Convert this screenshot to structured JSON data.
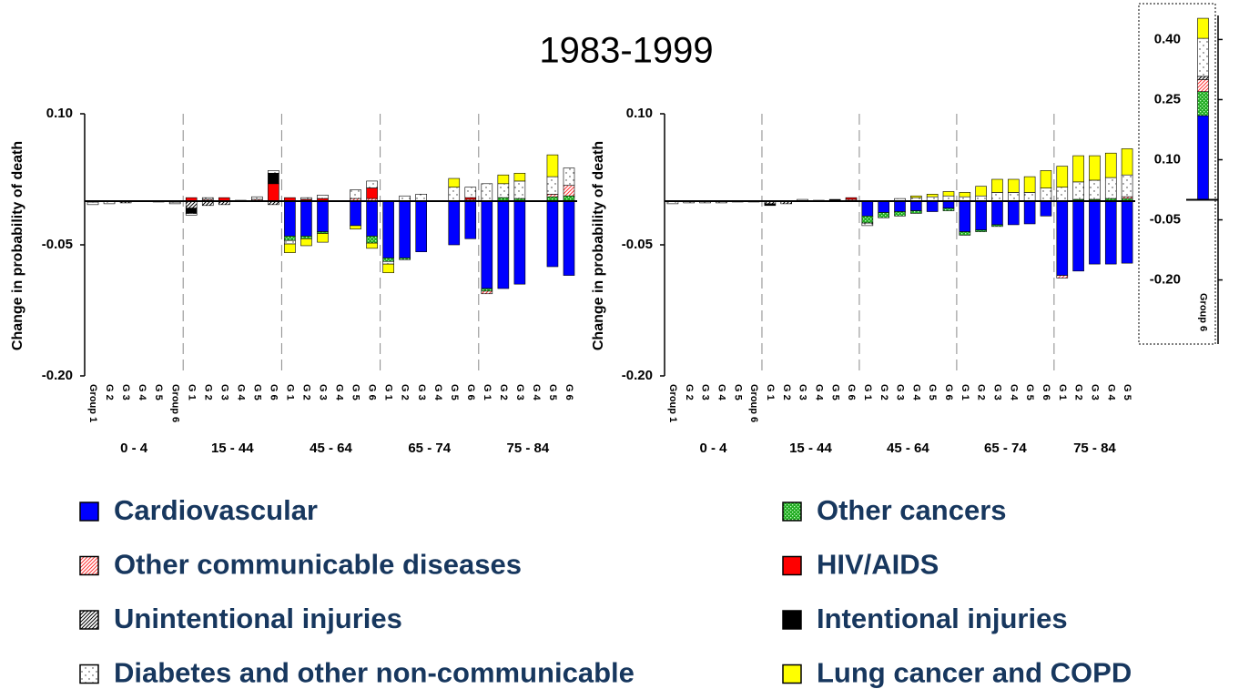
{
  "chart_data": [
    {
      "type": "bar",
      "stacked": true,
      "title": "1983-1999",
      "y_label": "Change in probability of death",
      "ylim": [
        -0.2,
        0.1
      ],
      "yticks": [
        {
          "value": -0.2,
          "label": "-0.20"
        },
        {
          "value": -0.05,
          "label": "-0.05"
        },
        {
          "value": 0.1,
          "label": "0.10"
        }
      ],
      "groups": [
        {
          "name": "0 - 4",
          "categories": [
            "Group 1",
            "G 2",
            "G 3",
            "G 4",
            "G 5",
            "Group 6"
          ]
        },
        {
          "name": "15 - 44",
          "categories": [
            "G 1",
            "G 2",
            "G 3",
            "G 4",
            "G 5",
            "G 6"
          ]
        },
        {
          "name": "45 - 64",
          "categories": [
            "G 1",
            "G 2",
            "G 3",
            "G 4",
            "G 5",
            "G 6"
          ]
        },
        {
          "name": "65 - 74",
          "categories": [
            "G 1",
            "G 2",
            "G 3",
            "G 4",
            "G 5",
            "G 6"
          ]
        },
        {
          "name": "75 - 84",
          "categories": [
            "G 1",
            "G 2",
            "G 3",
            "G 4",
            "G 5",
            "G 6"
          ]
        }
      ],
      "series": [
        {
          "name": "Cardiovascular",
          "color": "#0000ff",
          "pattern": "solid",
          "values": [
            0,
            0,
            0,
            0,
            0,
            0,
            0,
            0,
            0,
            0,
            0,
            0,
            -0.04,
            -0.04,
            -0.035,
            0,
            -0.028,
            -0.04,
            -0.065,
            -0.065,
            -0.058,
            0,
            -0.05,
            -0.043,
            -0.1,
            -0.1,
            -0.095,
            0,
            -0.075,
            -0.085
          ]
        },
        {
          "name": "Other cancers",
          "color": "#22aa22",
          "pattern": "checker",
          "values": [
            0,
            0,
            0,
            0,
            0,
            0,
            0,
            0,
            0,
            0,
            0,
            0,
            -0.005,
            -0.003,
            -0.002,
            0,
            0,
            -0.008,
            -0.004,
            -0.002,
            0,
            0,
            0,
            0,
            -0.003,
            0.004,
            0.003,
            0,
            0.005,
            0.006
          ]
        },
        {
          "name": "Other communicable diseases",
          "color": "#ff3333",
          "pattern": "hatch",
          "values": [
            -0.001,
            0,
            0,
            0,
            0,
            -0.001,
            0,
            0.002,
            0,
            0,
            0.002,
            0,
            0,
            0,
            0,
            0,
            0.003,
            0.003,
            0,
            0,
            0,
            0,
            0,
            0.002,
            -0.003,
            0,
            0,
            0,
            0.003,
            0.012
          ]
        },
        {
          "name": "HIV/AIDS",
          "color": "#ff0000",
          "pattern": "solid",
          "values": [
            0,
            0,
            0,
            0,
            0,
            0,
            0.004,
            0,
            0.004,
            0,
            0,
            0.02,
            0.004,
            0.002,
            0.003,
            0,
            0,
            0.012,
            0,
            0,
            0,
            0,
            0,
            0.002,
            0,
            0,
            0,
            0,
            0,
            0
          ]
        },
        {
          "name": "Unintentional injuries",
          "color": "#000000",
          "pattern": "hatch",
          "values": [
            0,
            0,
            -0.002,
            0,
            0,
            0,
            -0.008,
            -0.005,
            -0.004,
            0,
            0,
            -0.004,
            0,
            0,
            0,
            0,
            0,
            0,
            0,
            0,
            0,
            0,
            0,
            0,
            0,
            0,
            0,
            0,
            0,
            0
          ]
        },
        {
          "name": "Intentional injuries",
          "color": "#000000",
          "pattern": "solid",
          "values": [
            0,
            0,
            0,
            0,
            0,
            0,
            -0.006,
            0,
            0,
            0,
            0,
            0.012,
            0,
            0,
            0,
            0,
            0,
            0,
            0,
            0,
            0,
            0,
            0,
            0,
            0,
            0,
            0,
            0,
            0,
            0
          ]
        },
        {
          "name": "Diabetes and other non-communicable",
          "color": "#ffffff",
          "pattern": "dots",
          "values": [
            -0.003,
            -0.003,
            0,
            0,
            -0.001,
            -0.002,
            -0.002,
            0.002,
            0,
            0.001,
            0.003,
            0.003,
            -0.004,
            0.002,
            0.004,
            0,
            0.01,
            0.008,
            -0.003,
            0.006,
            0.008,
            0,
            0.016,
            0.012,
            0.02,
            0.016,
            0.02,
            0,
            0.02,
            0.02
          ]
        },
        {
          "name": "Lung cancer and COPD",
          "color": "#ffff00",
          "pattern": "solid",
          "values": [
            0,
            0,
            0,
            0,
            0,
            0,
            0,
            0,
            0,
            0,
            0,
            0,
            -0.01,
            -0.008,
            -0.01,
            0,
            -0.004,
            -0.006,
            -0.01,
            0,
            0,
            0,
            0.01,
            0,
            0,
            0.01,
            0.009,
            0,
            0.025,
            0
          ]
        }
      ]
    },
    {
      "type": "bar",
      "stacked": true,
      "y_label": "Change in probability of death",
      "ylim": [
        -0.2,
        0.1
      ],
      "yticks": [
        {
          "value": -0.2,
          "label": "-0.20"
        },
        {
          "value": -0.05,
          "label": "-0.05"
        },
        {
          "value": 0.1,
          "label": "0.10"
        }
      ],
      "groups": [
        {
          "name": "0 - 4",
          "categories": [
            "Group 1",
            "G 2",
            "G 3",
            "G 4",
            "G 5",
            "Group 6"
          ]
        },
        {
          "name": "15 - 44",
          "categories": [
            "G 1",
            "G 2",
            "G 3",
            "G 4",
            "G 5",
            "G 6"
          ]
        },
        {
          "name": "45 - 64",
          "categories": [
            "G 1",
            "G 2",
            "G 3",
            "G 4",
            "G 5",
            "G 6"
          ]
        },
        {
          "name": "65 - 74",
          "categories": [
            "G 1",
            "G 2",
            "G 3",
            "G 4",
            "G 5",
            "G 6"
          ]
        },
        {
          "name": "75 - 84",
          "categories": [
            "G 1",
            "G 2",
            "G 3",
            "G 4",
            "G 5"
          ]
        }
      ],
      "series": [
        {
          "values": [
            0,
            0,
            0,
            0,
            0,
            0,
            0,
            0,
            0,
            0,
            0,
            0,
            -0.017,
            -0.013,
            -0.012,
            -0.011,
            -0.012,
            -0.008,
            -0.035,
            -0.033,
            -0.027,
            -0.027,
            -0.026,
            -0.017,
            -0.085,
            -0.08,
            -0.072,
            -0.072,
            -0.071
          ]
        },
        {
          "values": [
            0,
            0,
            0,
            0,
            0,
            0,
            0,
            0,
            0,
            0,
            0,
            0,
            -0.008,
            -0.006,
            -0.005,
            -0.003,
            0,
            -0.003,
            -0.004,
            -0.002,
            -0.002,
            0,
            0,
            0,
            0,
            0.002,
            0.002,
            0.003,
            0.003
          ]
        },
        {
          "values": [
            0,
            0,
            0,
            0,
            0,
            0,
            0,
            0,
            0,
            0,
            0,
            0.002,
            0,
            0,
            0,
            0,
            0,
            0,
            0,
            0,
            0,
            0,
            0,
            0,
            -0.003,
            0,
            0,
            0,
            0.002
          ]
        },
        {
          "values": [
            0,
            0,
            0,
            0,
            0,
            0,
            0,
            0,
            0,
            0,
            0,
            0.002,
            0,
            0,
            0,
            0,
            0,
            0,
            0,
            0,
            0,
            0,
            0,
            0,
            0,
            0,
            0,
            0,
            0
          ]
        },
        {
          "values": [
            0,
            0,
            0,
            0,
            0,
            0,
            -0.003,
            -0.003,
            0,
            0,
            0,
            0,
            0,
            0,
            0,
            0,
            0,
            0,
            0,
            0,
            0,
            0,
            0,
            0,
            0,
            0,
            0,
            0,
            0
          ]
        },
        {
          "values": [
            0,
            0,
            0,
            0,
            0,
            0,
            -0.002,
            0,
            0,
            0,
            0.002,
            0,
            0,
            0,
            0,
            0,
            0,
            0,
            0,
            0,
            0,
            0,
            0,
            0,
            0,
            0,
            0,
            0,
            0
          ]
        },
        {
          "values": [
            -0.003,
            -0.002,
            -0.002,
            -0.002,
            -0.001,
            -0.001,
            0,
            0,
            0.002,
            0.001,
            0,
            0,
            -0.003,
            0,
            0.003,
            0.004,
            0.005,
            0.006,
            0.005,
            0.006,
            0.01,
            0.01,
            0.01,
            0.015,
            0.016,
            0.02,
            0.022,
            0.024,
            0.025
          ]
        },
        {
          "values": [
            0,
            0,
            0,
            0,
            0,
            0,
            0,
            0,
            0,
            0,
            0,
            0,
            0,
            0,
            0,
            0.002,
            0.003,
            0.005,
            0.005,
            0.011,
            0.015,
            0.015,
            0.018,
            0.02,
            0.024,
            0.03,
            0.028,
            0.028,
            0.03
          ]
        }
      ]
    },
    {
      "type": "bar",
      "stacked": true,
      "ylim": [
        -0.36,
        0.46
      ],
      "yticks": [
        {
          "value": -0.2,
          "label": "-0.20"
        },
        {
          "value": -0.05,
          "label": "-0.05"
        },
        {
          "value": 0.1,
          "label": "0.10"
        },
        {
          "value": 0.25,
          "label": "0.25"
        },
        {
          "value": 0.4,
          "label": "0.40"
        }
      ],
      "groups": [
        {
          "categories": [
            "Group 6"
          ]
        }
      ],
      "series": [
        {
          "values": [
            0.21
          ]
        },
        {
          "values": [
            0.06
          ]
        },
        {
          "values": [
            0.03
          ]
        },
        {
          "values": [
            0
          ]
        },
        {
          "values": [
            0.008
          ]
        },
        {
          "values": [
            0
          ]
        },
        {
          "values": [
            0.095
          ]
        },
        {
          "values": [
            0.05
          ]
        }
      ]
    }
  ]
}
